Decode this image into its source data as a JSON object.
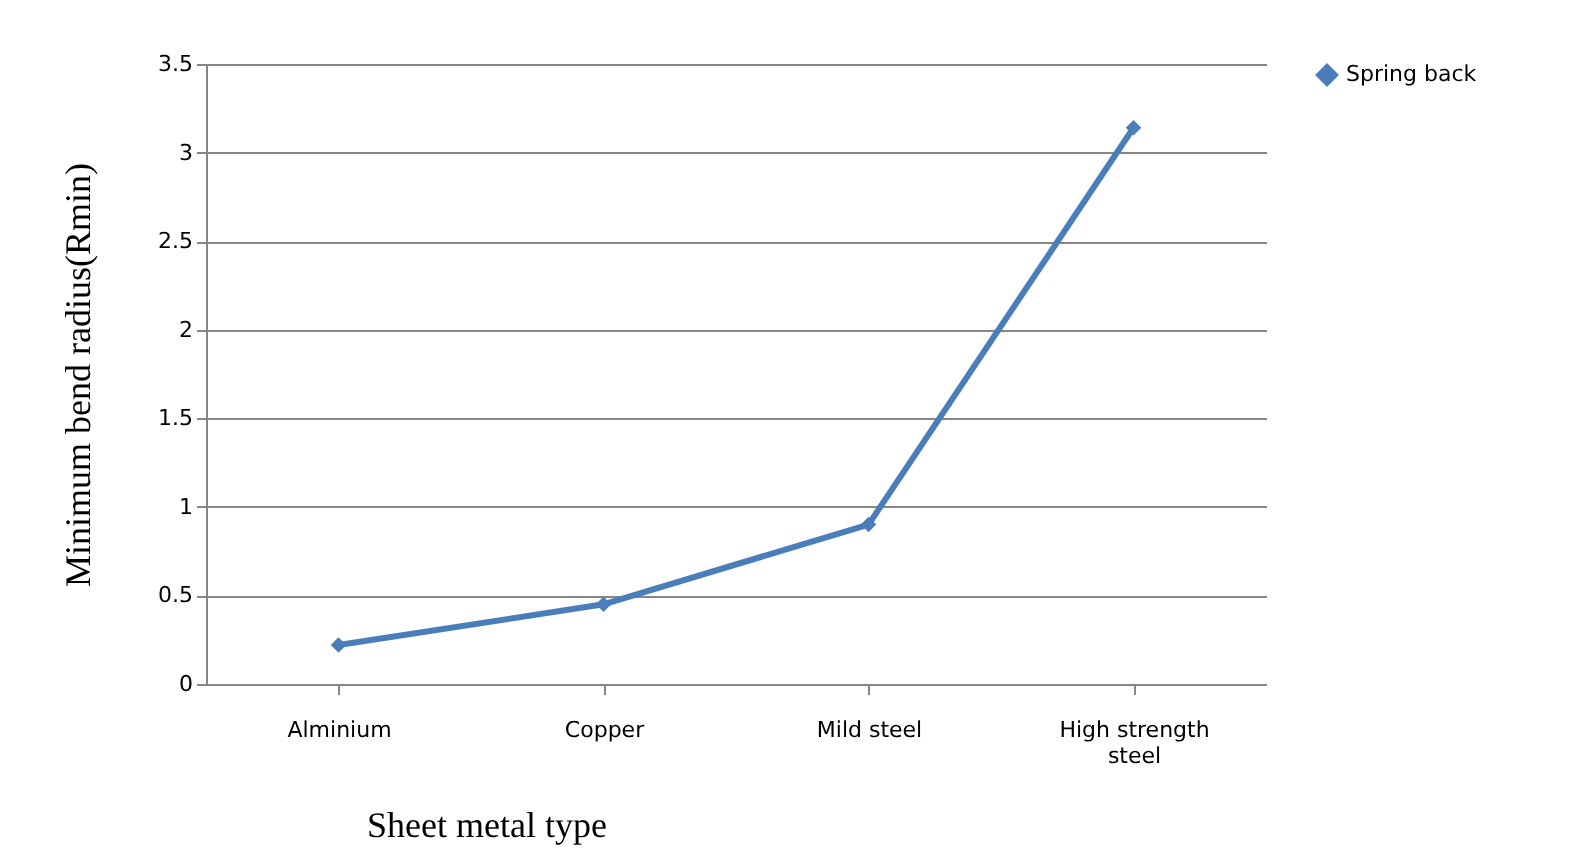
{
  "chart_data": {
    "type": "line",
    "xlabel": "Sheet metal type",
    "ylabel": "Minimum bend radius(Rmin)",
    "categories": [
      "Alminium",
      "Copper",
      "Mild steel",
      "High strength steel"
    ],
    "series": [
      {
        "name": "Spring back",
        "color": "#4a7ebb",
        "values": [
          0.22,
          0.45,
          0.9,
          3.14
        ]
      }
    ],
    "ylim": [
      0,
      3.5
    ],
    "yticks": [
      0,
      0.5,
      1,
      1.5,
      2,
      2.5,
      3,
      3.5
    ],
    "grid": "y",
    "legend": "right",
    "marker": "diamond",
    "line_style": "solid"
  }
}
